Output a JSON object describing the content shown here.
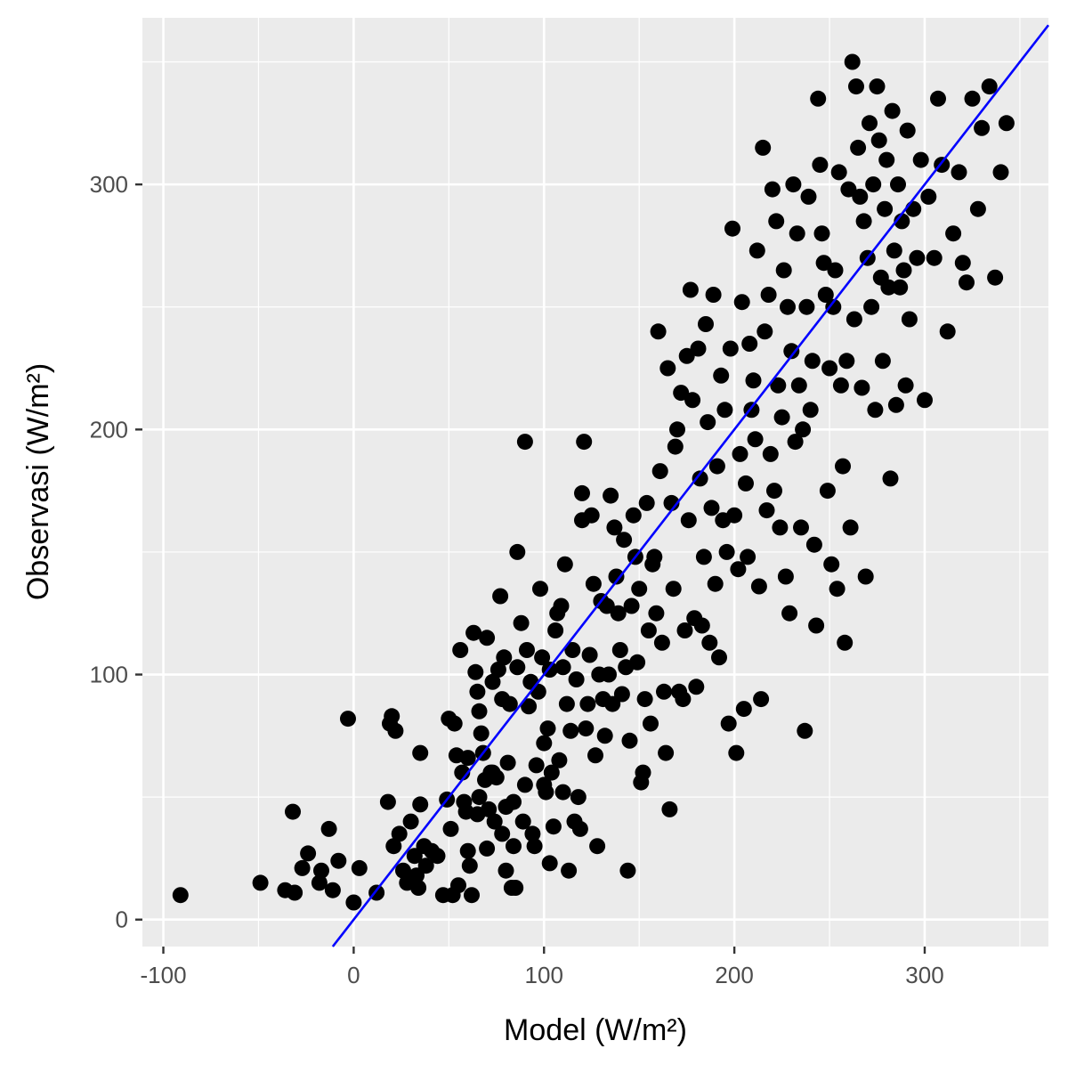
{
  "chart_data": {
    "type": "scatter",
    "title": "",
    "xlabel": "Model (W/m²)",
    "ylabel": "Observasi (W/m²)",
    "xlim": [
      -111,
      365
    ],
    "ylim": [
      -11,
      368
    ],
    "x_ticks": [
      -100,
      0,
      100,
      200,
      300
    ],
    "y_ticks": [
      0,
      100,
      200,
      300
    ],
    "x_tick_labels": [
      "-100",
      "0",
      "100",
      "200",
      "300"
    ],
    "y_tick_labels": [
      "0",
      "100",
      "200",
      "300"
    ],
    "grid": true,
    "legend": "none",
    "colors": {
      "panel_background": "#ebebeb",
      "grid_line": "#ffffff",
      "points": "#000000",
      "reference_line": "#0000ff"
    },
    "reference_line": {
      "type": "identity",
      "slope": 1,
      "intercept": 0
    },
    "series": [
      {
        "points": [
          [
            -91,
            10
          ],
          [
            -49,
            15
          ],
          [
            -36,
            12
          ],
          [
            -32,
            44
          ],
          [
            -31,
            11
          ],
          [
            -27,
            21
          ],
          [
            -24,
            27
          ],
          [
            -18,
            15
          ],
          [
            -17,
            20
          ],
          [
            -13,
            37
          ],
          [
            -11,
            12
          ],
          [
            -8,
            24
          ],
          [
            -3,
            82
          ],
          [
            0,
            7
          ],
          [
            3,
            21
          ],
          [
            12,
            11
          ],
          [
            18,
            48
          ],
          [
            19,
            80
          ],
          [
            20,
            83
          ],
          [
            21,
            30
          ],
          [
            22,
            77
          ],
          [
            24,
            35
          ],
          [
            26,
            20
          ],
          [
            28,
            15
          ],
          [
            30,
            40
          ],
          [
            32,
            26
          ],
          [
            33,
            18
          ],
          [
            34,
            13
          ],
          [
            35,
            47
          ],
          [
            35,
            68
          ],
          [
            37,
            30
          ],
          [
            38,
            22
          ],
          [
            41,
            28
          ],
          [
            44,
            26
          ],
          [
            47,
            10
          ],
          [
            49,
            49
          ],
          [
            50,
            82
          ],
          [
            51,
            37
          ],
          [
            52,
            10
          ],
          [
            53,
            80
          ],
          [
            54,
            67
          ],
          [
            55,
            14
          ],
          [
            56,
            110
          ],
          [
            57,
            60
          ],
          [
            58,
            48
          ],
          [
            59,
            44
          ],
          [
            60,
            28
          ],
          [
            60,
            66
          ],
          [
            61,
            22
          ],
          [
            62,
            10
          ],
          [
            63,
            117
          ],
          [
            64,
            101
          ],
          [
            65,
            43
          ],
          [
            65,
            93
          ],
          [
            66,
            85
          ],
          [
            66,
            50
          ],
          [
            67,
            76
          ],
          [
            68,
            68
          ],
          [
            69,
            57
          ],
          [
            70,
            29
          ],
          [
            70,
            115
          ],
          [
            71,
            45
          ],
          [
            72,
            60
          ],
          [
            73,
            97
          ],
          [
            73,
            60
          ],
          [
            74,
            40
          ],
          [
            75,
            58
          ],
          [
            76,
            102
          ],
          [
            77,
            132
          ],
          [
            78,
            90
          ],
          [
            78,
            35
          ],
          [
            79,
            107
          ],
          [
            80,
            46
          ],
          [
            80,
            20
          ],
          [
            81,
            64
          ],
          [
            82,
            88
          ],
          [
            83,
            13
          ],
          [
            84,
            48
          ],
          [
            84,
            30
          ],
          [
            85,
            13
          ],
          [
            86,
            150
          ],
          [
            86,
            103
          ],
          [
            88,
            121
          ],
          [
            89,
            40
          ],
          [
            90,
            55
          ],
          [
            90,
            195
          ],
          [
            91,
            110
          ],
          [
            92,
            87
          ],
          [
            93,
            97
          ],
          [
            94,
            35
          ],
          [
            95,
            30
          ],
          [
            96,
            63
          ],
          [
            97,
            93
          ],
          [
            98,
            135
          ],
          [
            99,
            107
          ],
          [
            100,
            55
          ],
          [
            100,
            72
          ],
          [
            101,
            52
          ],
          [
            102,
            78
          ],
          [
            103,
            102
          ],
          [
            103,
            23
          ],
          [
            104,
            60
          ],
          [
            105,
            38
          ],
          [
            106,
            118
          ],
          [
            107,
            125
          ],
          [
            108,
            65
          ],
          [
            109,
            128
          ],
          [
            110,
            103
          ],
          [
            110,
            52
          ],
          [
            111,
            145
          ],
          [
            112,
            88
          ],
          [
            113,
            20
          ],
          [
            114,
            77
          ],
          [
            115,
            110
          ],
          [
            116,
            40
          ],
          [
            117,
            98
          ],
          [
            118,
            50
          ],
          [
            119,
            37
          ],
          [
            120,
            163
          ],
          [
            120,
            174
          ],
          [
            121,
            195
          ],
          [
            122,
            78
          ],
          [
            123,
            88
          ],
          [
            124,
            108
          ],
          [
            125,
            165
          ],
          [
            126,
            137
          ],
          [
            127,
            67
          ],
          [
            128,
            30
          ],
          [
            129,
            100
          ],
          [
            130,
            130
          ],
          [
            131,
            90
          ],
          [
            132,
            75
          ],
          [
            133,
            128
          ],
          [
            134,
            100
          ],
          [
            135,
            173
          ],
          [
            136,
            88
          ],
          [
            137,
            160
          ],
          [
            138,
            140
          ],
          [
            139,
            125
          ],
          [
            140,
            110
          ],
          [
            141,
            92
          ],
          [
            142,
            155
          ],
          [
            143,
            103
          ],
          [
            144,
            20
          ],
          [
            145,
            73
          ],
          [
            146,
            128
          ],
          [
            147,
            165
          ],
          [
            148,
            148
          ],
          [
            149,
            105
          ],
          [
            150,
            135
          ],
          [
            151,
            56
          ],
          [
            152,
            60
          ],
          [
            153,
            90
          ],
          [
            154,
            170
          ],
          [
            155,
            118
          ],
          [
            156,
            80
          ],
          [
            157,
            145
          ],
          [
            158,
            148
          ],
          [
            159,
            125
          ],
          [
            160,
            240
          ],
          [
            161,
            183
          ],
          [
            162,
            113
          ],
          [
            163,
            93
          ],
          [
            164,
            68
          ],
          [
            165,
            225
          ],
          [
            166,
            45
          ],
          [
            167,
            170
          ],
          [
            168,
            135
          ],
          [
            169,
            193
          ],
          [
            170,
            200
          ],
          [
            171,
            93
          ],
          [
            172,
            215
          ],
          [
            173,
            90
          ],
          [
            174,
            118
          ],
          [
            175,
            230
          ],
          [
            176,
            163
          ],
          [
            177,
            257
          ],
          [
            178,
            212
          ],
          [
            179,
            123
          ],
          [
            180,
            95
          ],
          [
            181,
            233
          ],
          [
            182,
            180
          ],
          [
            183,
            120
          ],
          [
            184,
            148
          ],
          [
            185,
            243
          ],
          [
            186,
            203
          ],
          [
            187,
            113
          ],
          [
            188,
            168
          ],
          [
            189,
            255
          ],
          [
            190,
            137
          ],
          [
            191,
            185
          ],
          [
            192,
            107
          ],
          [
            193,
            222
          ],
          [
            194,
            163
          ],
          [
            195,
            208
          ],
          [
            196,
            150
          ],
          [
            197,
            80
          ],
          [
            198,
            233
          ],
          [
            199,
            282
          ],
          [
            200,
            165
          ],
          [
            201,
            68
          ],
          [
            202,
            143
          ],
          [
            203,
            190
          ],
          [
            204,
            252
          ],
          [
            205,
            86
          ],
          [
            206,
            178
          ],
          [
            207,
            148
          ],
          [
            208,
            235
          ],
          [
            209,
            208
          ],
          [
            210,
            220
          ],
          [
            211,
            196
          ],
          [
            212,
            273
          ],
          [
            213,
            136
          ],
          [
            214,
            90
          ],
          [
            215,
            315
          ],
          [
            216,
            240
          ],
          [
            217,
            167
          ],
          [
            218,
            255
          ],
          [
            219,
            190
          ],
          [
            220,
            298
          ],
          [
            221,
            175
          ],
          [
            222,
            285
          ],
          [
            223,
            218
          ],
          [
            224,
            160
          ],
          [
            225,
            205
          ],
          [
            226,
            265
          ],
          [
            227,
            140
          ],
          [
            228,
            250
          ],
          [
            229,
            125
          ],
          [
            230,
            232
          ],
          [
            231,
            300
          ],
          [
            232,
            195
          ],
          [
            233,
            280
          ],
          [
            234,
            218
          ],
          [
            235,
            160
          ],
          [
            236,
            200
          ],
          [
            237,
            77
          ],
          [
            238,
            250
          ],
          [
            239,
            295
          ],
          [
            240,
            208
          ],
          [
            241,
            228
          ],
          [
            242,
            153
          ],
          [
            243,
            120
          ],
          [
            244,
            335
          ],
          [
            245,
            308
          ],
          [
            246,
            280
          ],
          [
            247,
            268
          ],
          [
            248,
            255
          ],
          [
            249,
            175
          ],
          [
            250,
            225
          ],
          [
            251,
            145
          ],
          [
            252,
            250
          ],
          [
            253,
            265
          ],
          [
            254,
            135
          ],
          [
            255,
            305
          ],
          [
            256,
            218
          ],
          [
            257,
            185
          ],
          [
            258,
            113
          ],
          [
            259,
            228
          ],
          [
            260,
            298
          ],
          [
            261,
            160
          ],
          [
            262,
            350
          ],
          [
            263,
            245
          ],
          [
            264,
            340
          ],
          [
            265,
            315
          ],
          [
            266,
            295
          ],
          [
            267,
            217
          ],
          [
            268,
            285
          ],
          [
            269,
            140
          ],
          [
            270,
            270
          ],
          [
            271,
            325
          ],
          [
            272,
            250
          ],
          [
            273,
            300
          ],
          [
            274,
            208
          ],
          [
            275,
            340
          ],
          [
            276,
            318
          ],
          [
            277,
            262
          ],
          [
            278,
            228
          ],
          [
            279,
            290
          ],
          [
            280,
            310
          ],
          [
            281,
            258
          ],
          [
            282,
            180
          ],
          [
            283,
            330
          ],
          [
            284,
            273
          ],
          [
            285,
            210
          ],
          [
            286,
            300
          ],
          [
            287,
            258
          ],
          [
            288,
            285
          ],
          [
            289,
            265
          ],
          [
            290,
            218
          ],
          [
            291,
            322
          ],
          [
            292,
            245
          ],
          [
            294,
            290
          ],
          [
            296,
            270
          ],
          [
            298,
            310
          ],
          [
            300,
            212
          ],
          [
            302,
            295
          ],
          [
            305,
            270
          ],
          [
            307,
            335
          ],
          [
            309,
            308
          ],
          [
            312,
            240
          ],
          [
            315,
            280
          ],
          [
            318,
            305
          ],
          [
            320,
            268
          ],
          [
            322,
            260
          ],
          [
            325,
            335
          ],
          [
            328,
            290
          ],
          [
            330,
            323
          ],
          [
            334,
            340
          ],
          [
            337,
            262
          ],
          [
            340,
            305
          ],
          [
            343,
            325
          ]
        ]
      }
    ]
  }
}
